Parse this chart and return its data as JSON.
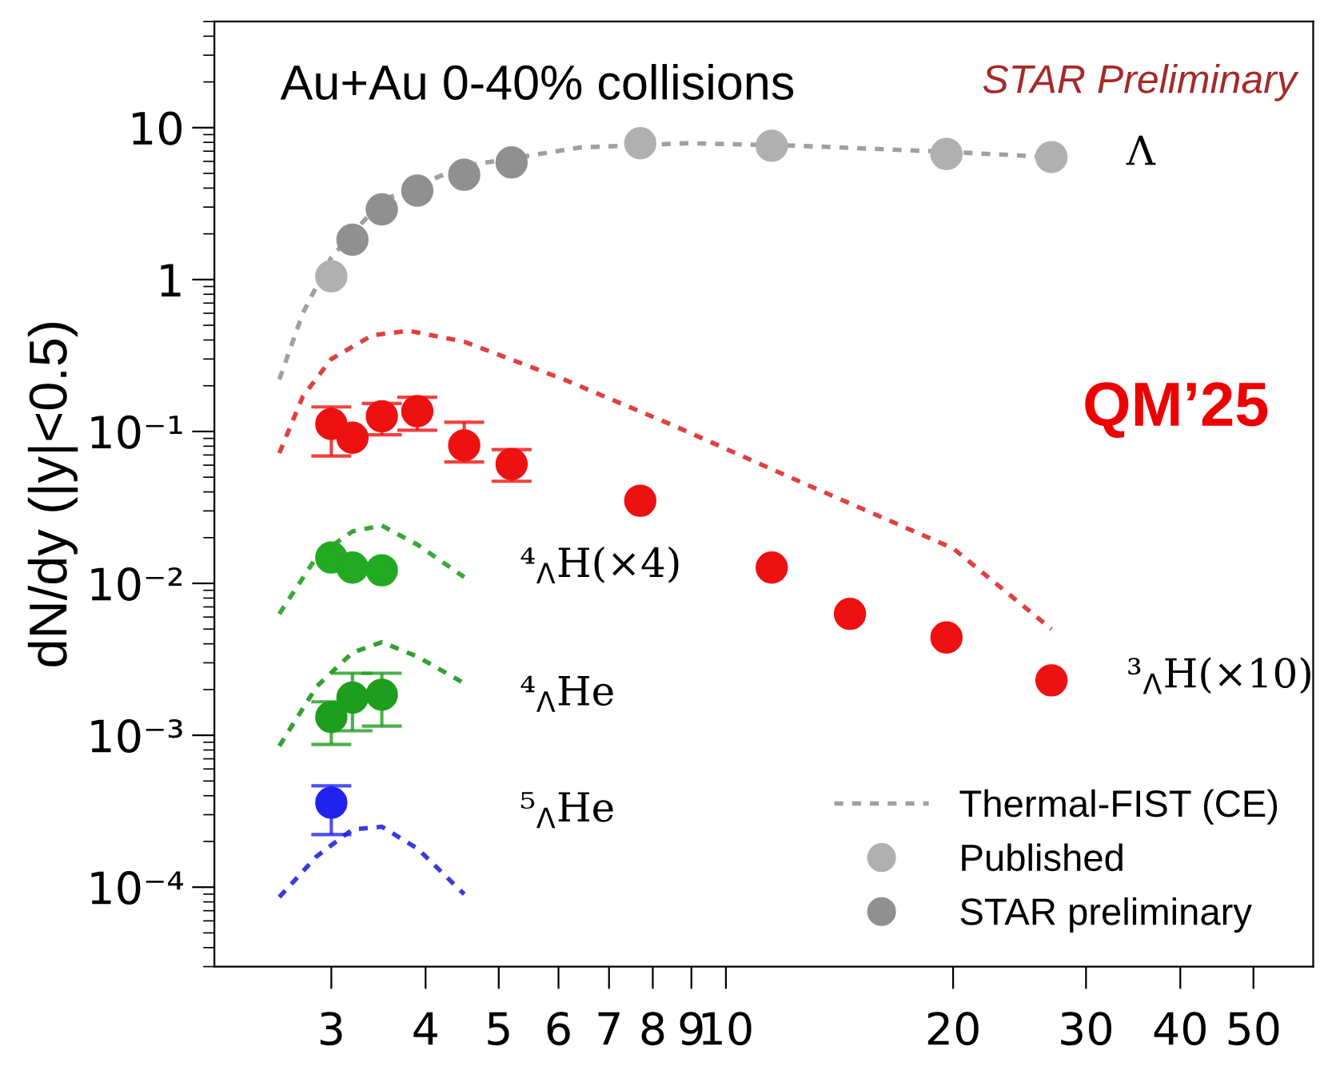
{
  "chart_data": {
    "type": "scatter",
    "title": "Au+Au 0-40% collisions",
    "ylabel": "dN/dy (|y|<0.5)",
    "log": "xy",
    "grid": false,
    "legend": "bottom right",
    "xlim": [
      2.1,
      60
    ],
    "xticks": [
      3,
      4,
      5,
      6,
      7,
      8,
      9,
      10,
      20,
      30,
      40,
      50
    ],
    "ylim": [
      3e-05,
      50
    ],
    "yticks": [
      {
        "value": 0.0001,
        "label": "10⁻⁴"
      },
      {
        "value": 0.001,
        "label": "10⁻³"
      },
      {
        "value": 0.01,
        "label": "10⁻²"
      },
      {
        "value": 0.1,
        "label": "10⁻¹"
      },
      1,
      10
    ],
    "series": [
      {
        "name": "Thermal-FIST (CE)",
        "type": "line",
        "marker": "none",
        "line_style": "dashed",
        "color": "#a0a0a0",
        "x": [
          2.56,
          2.75,
          3.0,
          3.5,
          4.5,
          6.4,
          8.9,
          12.5,
          20,
          27
        ],
        "values": [
          0.22,
          0.6,
          1.4,
          3.3,
          5.6,
          7.4,
          7.9,
          7.6,
          6.9,
          6.4
        ]
      },
      {
        "type": "line",
        "marker": "none",
        "line_style": "dashed",
        "color": "#e04040",
        "x": [
          2.56,
          2.75,
          3.0,
          3.4,
          3.8,
          4.5,
          6.1,
          8.5,
          12.5,
          20,
          27
        ],
        "values": [
          0.072,
          0.17,
          0.3,
          0.43,
          0.46,
          0.39,
          0.22,
          0.11,
          0.047,
          0.017,
          0.005
        ]
      },
      {
        "type": "line",
        "marker": "none",
        "line_style": "dashed",
        "color": "#3aa83a",
        "x": [
          2.56,
          2.87,
          3.2,
          3.5,
          3.9,
          4.5
        ],
        "values": [
          0.0063,
          0.015,
          0.022,
          0.024,
          0.018,
          0.011
        ]
      },
      {
        "type": "line",
        "marker": "none",
        "line_style": "dashed",
        "color": "#33a033",
        "x": [
          2.56,
          2.87,
          3.2,
          3.5,
          3.9,
          4.5
        ],
        "values": [
          0.00085,
          0.0021,
          0.0035,
          0.0041,
          0.0033,
          0.0022
        ]
      },
      {
        "type": "line",
        "marker": "none",
        "line_style": "dashed",
        "color": "#3a3ae0",
        "x": [
          2.56,
          2.87,
          3.2,
          3.5,
          3.9,
          4.5
        ],
        "values": [
          8.6e-05,
          0.00016,
          0.00024,
          0.00025,
          0.00018,
          9e-05
        ]
      },
      {
        "name": "Published",
        "marker": "circle",
        "color": "#b0b0b0",
        "x": [
          3.0,
          7.7,
          11.5,
          19.6,
          27
        ],
        "values": [
          1.05,
          7.9,
          7.6,
          6.7,
          6.4
        ]
      },
      {
        "name": "STAR preliminary",
        "marker": "circle",
        "color": "#909090",
        "x": [
          3.2,
          3.5,
          3.9,
          4.5,
          5.2
        ],
        "values": [
          1.83,
          2.9,
          3.85,
          4.9,
          5.9
        ]
      },
      {
        "marker": "circle",
        "color": "#ee1111",
        "x": [
          3.0,
          3.2,
          3.5,
          3.9,
          4.5,
          5.2,
          7.7,
          11.5,
          14.6,
          19.6,
          27
        ],
        "values": [
          0.112,
          0.091,
          0.126,
          0.136,
          0.081,
          0.061,
          0.035,
          0.0127,
          0.0063,
          0.0044,
          0.0023
        ],
        "errors": [
          [
            0.069,
            0.145
          ],
          null,
          [
            0.095,
            0.153
          ],
          [
            0.102,
            0.168
          ],
          [
            0.063,
            0.115
          ],
          [
            0.047,
            0.076
          ],
          null,
          null,
          null,
          null,
          null
        ]
      },
      {
        "marker": "circle",
        "color": "#22aa22",
        "x": [
          3.0,
          3.2,
          3.5
        ],
        "values": [
          0.0148,
          0.0127,
          0.0122
        ]
      },
      {
        "marker": "circle",
        "color": "#1e9e1e",
        "x": [
          3.0,
          3.2,
          3.5
        ],
        "values": [
          0.00132,
          0.00177,
          0.00185
        ],
        "errors": [
          [
            0.00087,
            0.00166
          ],
          [
            0.00107,
            0.00256
          ],
          [
            0.00115,
            0.00256
          ]
        ]
      },
      {
        "marker": "circle",
        "color": "#2222ee",
        "x": [
          3.0
        ],
        "values": [
          0.00036
        ],
        "errors": [
          [
            0.000222,
            0.000465
          ]
        ]
      }
    ],
    "annotations": [
      "STAR Preliminary",
      "QM’25",
      "Λ",
      "³$_{Λ}$H(×10)",
      "⁴$_{Λ}$H(×4)",
      "⁴$_{Λ}$He",
      "⁵$_{Λ}$He"
    ]
  }
}
